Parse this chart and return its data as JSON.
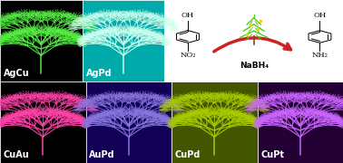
{
  "panels": [
    {
      "label": "AgCu",
      "bg_color": "#000000",
      "dendrite_color": "#55ee44",
      "row": 0,
      "col": 0
    },
    {
      "label": "AgPd",
      "bg_color": "#00aaaa",
      "dendrite_color": "#ccffee",
      "row": 0,
      "col": 1
    },
    {
      "label": "CuAu",
      "bg_color": "#000000",
      "dendrite_color": "#ff44aa",
      "row": 1,
      "col": 0
    },
    {
      "label": "AuPd",
      "bg_color": "#110055",
      "dendrite_color": "#8877dd",
      "row": 1,
      "col": 1
    },
    {
      "label": "CuPd",
      "bg_color": "#445500",
      "dendrite_color": "#aacc00",
      "row": 1,
      "col": 2
    },
    {
      "label": "CuPt",
      "bg_color": "#220033",
      "dendrite_color": "#cc66ff",
      "row": 1,
      "col": 3
    }
  ],
  "reaction": {
    "reactant_label": "NO₂",
    "product_label": "NH₂",
    "reagent": "NaBH₄",
    "arrow_color": "#cc2222",
    "tree_color": "#55cc22",
    "bg_color": "#ffffff"
  },
  "label_color": "#ffffff",
  "label_fontsize": 7,
  "figsize": [
    3.78,
    1.8
  ],
  "dpi": 100
}
